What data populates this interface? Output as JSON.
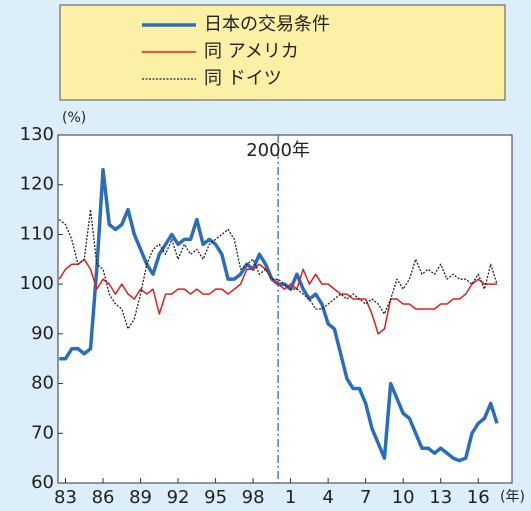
{
  "chart_data": {
    "type": "line",
    "y_unit": "(%)",
    "x_unit": "(年)",
    "legend": "top",
    "xlim": [
      1982.4,
      2018.7
    ],
    "xticks": [
      {
        "value": 1983,
        "label": "83"
      },
      {
        "value": 1986,
        "label": "86"
      },
      {
        "value": 1989,
        "label": "89"
      },
      {
        "value": 1992,
        "label": "92"
      },
      {
        "value": 1995,
        "label": "95"
      },
      {
        "value": 1998,
        "label": "98"
      },
      {
        "value": 2001,
        "label": "1"
      },
      {
        "value": 2004,
        "label": "4"
      },
      {
        "value": 2007,
        "label": "7"
      },
      {
        "value": 2010,
        "label": "10"
      },
      {
        "value": 2013,
        "label": "13"
      },
      {
        "value": 2016,
        "label": "16"
      }
    ],
    "ylim": [
      60,
      130
    ],
    "yticks": [
      60,
      70,
      80,
      90,
      100,
      110,
      120,
      130
    ],
    "annotations": [
      {
        "x": 2000,
        "label": "2000年",
        "color": "#2b6cb0"
      }
    ],
    "x": [
      1982.5,
      1983,
      1983.5,
      1984,
      1984.5,
      1985,
      1985.5,
      1986,
      1986.5,
      1987,
      1987.5,
      1988,
      1988.5,
      1989,
      1989.5,
      1990,
      1990.5,
      1991,
      1991.5,
      1992,
      1992.5,
      1993,
      1993.5,
      1994,
      1994.5,
      1995,
      1995.5,
      1996,
      1996.5,
      1997,
      1997.5,
      1998,
      1998.5,
      1999,
      1999.5,
      2000,
      2000.5,
      2001,
      2001.5,
      2002,
      2002.5,
      2003,
      2003.5,
      2004,
      2004.5,
      2005,
      2005.5,
      2006,
      2006.5,
      2007,
      2007.5,
      2008,
      2008.5,
      2009,
      2009.5,
      2010,
      2010.5,
      2011,
      2011.5,
      2012,
      2012.5,
      2013,
      2013.5,
      2014,
      2014.5,
      2015,
      2015.5,
      2016,
      2016.5,
      2017,
      2017.5
    ],
    "series": [
      {
        "name": "日本の交易条件",
        "color": "#2a6ebb",
        "line_style": "solid",
        "line_width": 3.5,
        "values": [
          85,
          85,
          87,
          87,
          86,
          87,
          103,
          123,
          112,
          111,
          112,
          115,
          110,
          107,
          104,
          102,
          106,
          108,
          110,
          108,
          109,
          109,
          113,
          108,
          109,
          108,
          106,
          101,
          101,
          102,
          104,
          103,
          106,
          104,
          101,
          100,
          100,
          99,
          102,
          99,
          97,
          98,
          96,
          92,
          91,
          86,
          81,
          79,
          79,
          76,
          71,
          68,
          65,
          80,
          77,
          74,
          73,
          70,
          67,
          67,
          66,
          67,
          66,
          65,
          64.5,
          65,
          70,
          72,
          73,
          76,
          72
        ]
      },
      {
        "name": "同 アメリカ",
        "color": "#e02020",
        "line_style": "solid",
        "line_width": 1.5,
        "values": [
          101,
          103,
          104,
          104,
          105,
          103,
          99,
          101,
          100,
          98,
          100,
          98,
          97,
          99,
          98,
          99,
          94,
          98,
          98,
          99,
          99,
          98,
          99,
          98,
          98,
          99,
          99,
          98,
          99,
          100,
          103,
          103,
          104,
          103,
          101,
          100,
          99,
          100,
          99,
          103,
          100,
          102,
          100,
          100,
          99,
          98,
          98,
          97,
          97,
          97,
          94,
          90,
          91,
          97,
          97,
          96,
          96,
          95,
          95,
          95,
          95,
          96,
          96,
          97,
          97,
          98,
          100,
          101,
          100,
          100,
          100
        ]
      },
      {
        "name": "同 ドイツ",
        "color": "#222222",
        "line_style": "dotted",
        "line_width": 1.3,
        "values": [
          113,
          112,
          109,
          104,
          105,
          115,
          104,
          103,
          98,
          96,
          95,
          91,
          93,
          98,
          104,
          107,
          108,
          106,
          109,
          105,
          108,
          106,
          107,
          105,
          108,
          109,
          110,
          111,
          109,
          103,
          104,
          105,
          102,
          103,
          101,
          101,
          100,
          99,
          99,
          98,
          97,
          95,
          95,
          96,
          97,
          98,
          97,
          98,
          97,
          96,
          97,
          96,
          94,
          97,
          101,
          99,
          101,
          105,
          102,
          103,
          102,
          104,
          101,
          102,
          101,
          101,
          100,
          102,
          99,
          104,
          100
        ]
      }
    ]
  }
}
